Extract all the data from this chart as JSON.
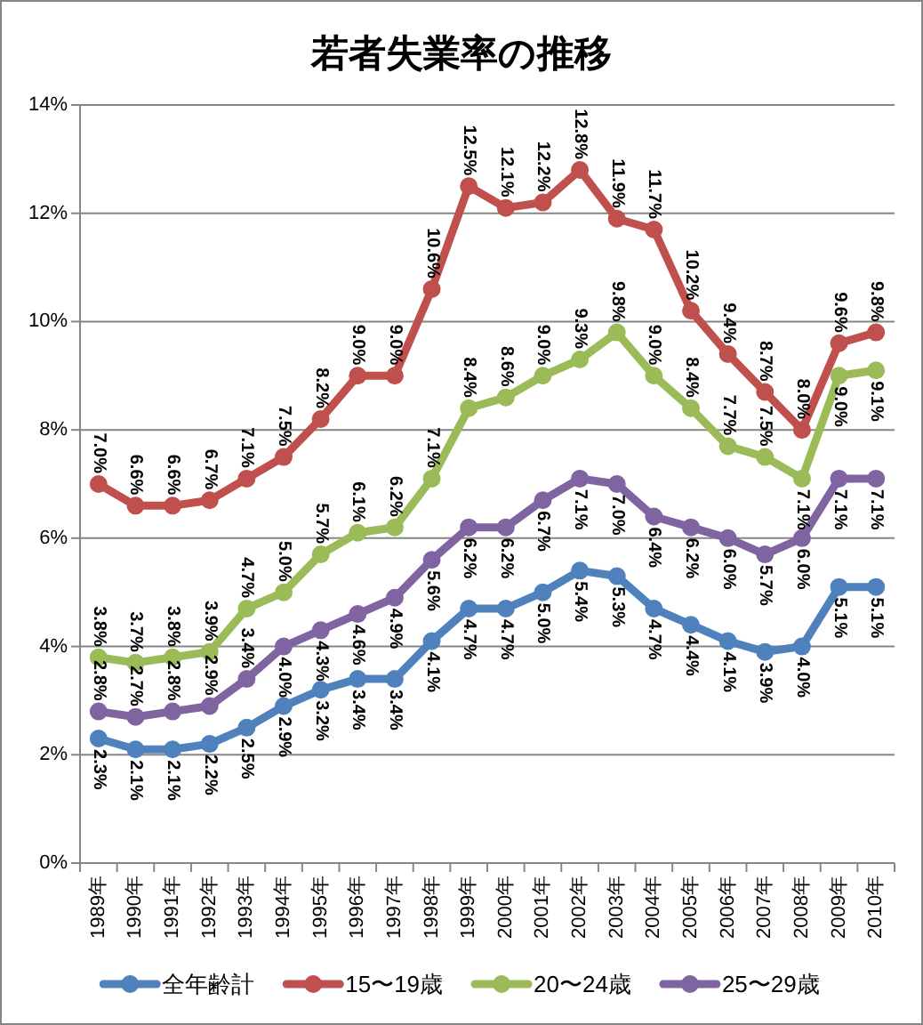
{
  "chart_data": {
    "type": "line",
    "title": "若者失業率の推移",
    "categories": [
      "1989年",
      "1990年",
      "1991年",
      "1992年",
      "1993年",
      "1994年",
      "1995年",
      "1996年",
      "1997年",
      "1998年",
      "1999年",
      "2000年",
      "2001年",
      "2002年",
      "2003年",
      "2004年",
      "2005年",
      "2006年",
      "2007年",
      "2008年",
      "2009年",
      "2010年"
    ],
    "series": [
      {
        "name": "全年齢計",
        "color": "#4f81bd",
        "values": [
          2.3,
          2.1,
          2.1,
          2.2,
          2.5,
          2.9,
          3.2,
          3.4,
          3.4,
          4.1,
          4.7,
          4.7,
          5.0,
          5.4,
          5.3,
          4.7,
          4.4,
          4.1,
          3.9,
          4.0,
          5.1,
          5.1
        ],
        "value_labels": [
          "2.3%",
          "2.1%",
          "2.1%",
          "2.2%",
          "2.5%",
          "2.9%",
          "3.2%",
          "3.4%",
          "3.4%",
          "4.1%",
          "4.7%",
          "4.7%",
          "5.0%",
          "5.4%",
          "5.3%",
          "4.7%",
          "4.4%",
          "4.1%",
          "3.9%",
          "4.0%",
          "5.1%",
          "5.1%"
        ]
      },
      {
        "name": "15〜19歳",
        "color": "#c0504d",
        "values": [
          7.0,
          6.6,
          6.6,
          6.7,
          7.1,
          7.5,
          8.2,
          9.0,
          9.0,
          10.6,
          12.5,
          12.1,
          12.2,
          12.8,
          11.9,
          11.7,
          10.2,
          9.4,
          8.7,
          8.0,
          9.6,
          9.8
        ],
        "value_labels": [
          "7.0%",
          "6.6%",
          "6.6%",
          "6.7%",
          "7.1%",
          "7.5%",
          "8.2%",
          "9.0%",
          "9.0%",
          "10.6%",
          "12.5%",
          "12.1%",
          "12.2%",
          "12.8%",
          "11.9%",
          "11.7%",
          "10.2%",
          "9.4%",
          "8.7%",
          "8.0%",
          "9.6%",
          "9.8%"
        ]
      },
      {
        "name": "20〜24歳",
        "color": "#9bbb59",
        "values": [
          3.8,
          3.7,
          3.8,
          3.9,
          4.7,
          5.0,
          5.7,
          6.1,
          6.2,
          7.1,
          8.4,
          8.6,
          9.0,
          9.3,
          9.8,
          9.0,
          8.4,
          7.7,
          7.5,
          7.1,
          9.0,
          9.1
        ],
        "value_labels": [
          "3.8%",
          "3.7%",
          "3.8%",
          "3.9%",
          "4.7%",
          "5.0%",
          "5.7%",
          "6.1%",
          "6.2%",
          "7.1%",
          "8.4%",
          "8.6%",
          "9.0%",
          "9.3%",
          "9.8%",
          "9.0%",
          "8.4%",
          "7.7%",
          "7.5%",
          "7.1%",
          "9.0%",
          "9.1%"
        ]
      },
      {
        "name": "25〜29歳",
        "color": "#8064a2",
        "values": [
          2.8,
          2.7,
          2.8,
          2.9,
          3.4,
          4.0,
          4.3,
          4.6,
          4.9,
          5.6,
          6.2,
          6.2,
          6.7,
          7.1,
          7.0,
          6.4,
          6.2,
          6.0,
          5.7,
          6.0,
          7.1,
          7.1
        ],
        "value_labels": [
          "2.8%",
          "2.7%",
          "2.8%",
          "2.9%",
          "3.4%",
          "4.0%",
          "4.3%",
          "4.6%",
          "4.9%",
          "5.6%",
          "6.2%",
          "6.2%",
          "6.7%",
          "7.1%",
          "7.0%",
          "6.4%",
          "6.2%",
          "6.0%",
          "5.7%",
          "6.0%",
          "7.1%",
          "7.1%"
        ]
      }
    ],
    "ylim": [
      0,
      14
    ],
    "yticks": [
      {
        "value": 0,
        "label": "0%"
      },
      {
        "value": 2,
        "label": "2%"
      },
      {
        "value": 4,
        "label": "4%"
      },
      {
        "value": 6,
        "label": "6%"
      },
      {
        "value": 8,
        "label": "8%"
      },
      {
        "value": 10,
        "label": "10%"
      },
      {
        "value": 12,
        "label": "12%"
      },
      {
        "value": 14,
        "label": "14%"
      }
    ],
    "grid": "y",
    "legend": "bottom",
    "marker": "circle",
    "line_style": "solid"
  }
}
